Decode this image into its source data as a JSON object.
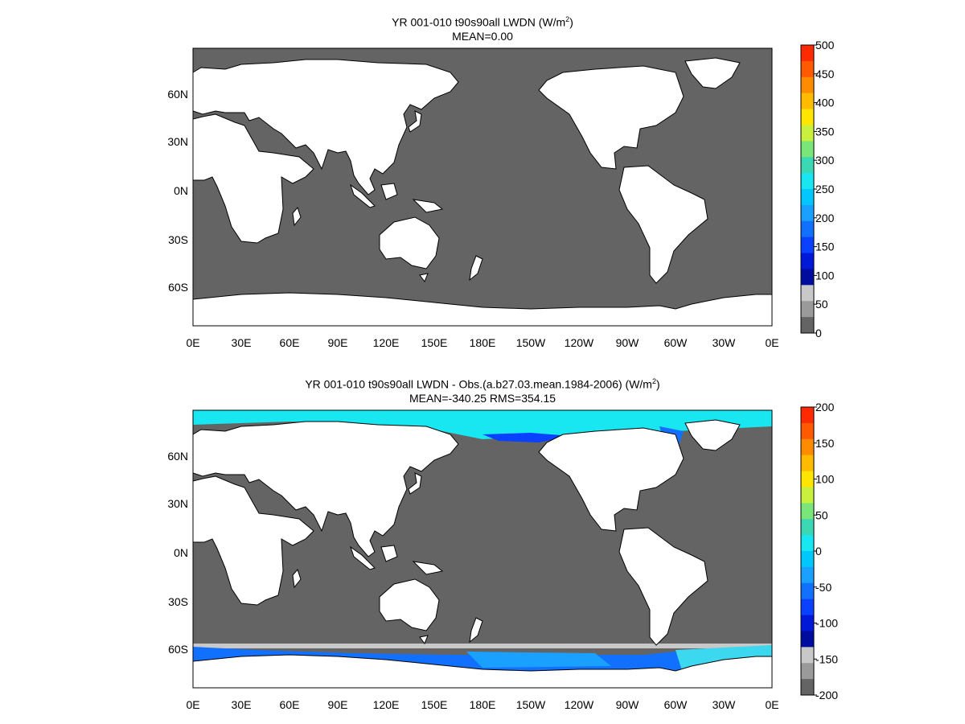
{
  "panels": [
    {
      "title_main": "YR 001-010 t90s90all LWDN (W/m",
      "title_sup": "2",
      "title_end": ")",
      "subtitle": "MEAN=0.00",
      "colorbar": {
        "ticks": [
          "500",
          "450",
          "400",
          "350",
          "300",
          "250",
          "200",
          "150",
          "100",
          "50",
          "0"
        ],
        "colors": [
          "#ff2a00",
          "#ff5a00",
          "#ff8c00",
          "#ffbb00",
          "#ffe600",
          "#c8f03c",
          "#7ae67a",
          "#3cd8b4",
          "#18e6f0",
          "#00c8ff",
          "#1aa0ff",
          "#1270ff",
          "#0a40ff",
          "#0018d8",
          "#000c9e",
          "#c8c8c8",
          "#9a9a9a",
          "#646464"
        ]
      }
    },
    {
      "title_main": "YR 001-010 t90s90all LWDN - Obs.(a.b27.03.mean.1984-2006) (W/m",
      "title_sup": "2",
      "title_end": ")",
      "subtitle": "MEAN=-340.25 RMS=354.15",
      "colorbar": {
        "ticks": [
          "200",
          "150",
          "100",
          "50",
          "0",
          "-50",
          "-100",
          "-150",
          "-200"
        ],
        "colors": [
          "#ff2a00",
          "#ff5a00",
          "#ff8c00",
          "#ffbb00",
          "#ffe600",
          "#c8f03c",
          "#7ae67a",
          "#3cd8b4",
          "#18e6f0",
          "#00c8ff",
          "#1aa0ff",
          "#1270ff",
          "#0a40ff",
          "#0018d8",
          "#000c9e",
          "#c8c8c8",
          "#9a9a9a",
          "#646464"
        ]
      }
    }
  ],
  "map": {
    "lon_labels": [
      "0E",
      "30E",
      "60E",
      "90E",
      "120E",
      "150E",
      "180E",
      "150W",
      "120W",
      "90W",
      "60W",
      "30W",
      "0E"
    ],
    "lat_labels": [
      "60N",
      "30N",
      "0N",
      "30S",
      "60S"
    ],
    "ocean_color": "#646464",
    "land_color": "#ffffff"
  }
}
